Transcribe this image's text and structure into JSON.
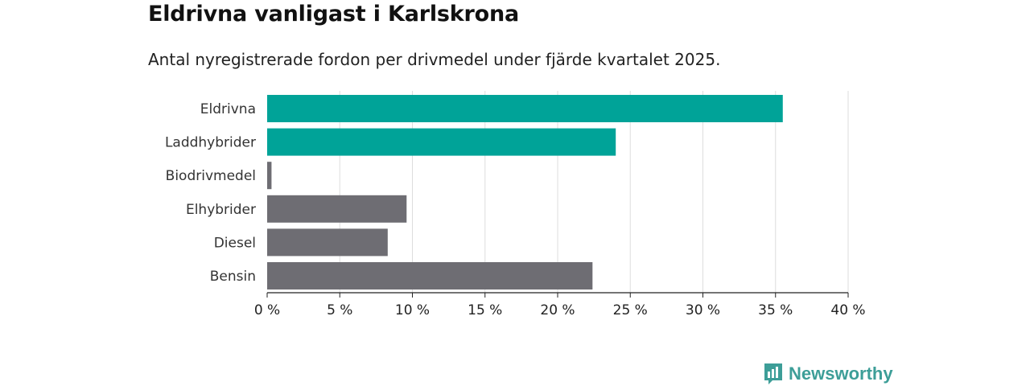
{
  "chart_data": {
    "type": "bar",
    "orientation": "horizontal",
    "title": "Eldrivna vanligast i Karlskrona",
    "subtitle": "Antal nyregistrerade fordon per drivmedel under fjärde kvartalet 2025.",
    "categories": [
      "Eldrivna",
      "Laddhybrider",
      "Biodrivmedel",
      "Elhybrider",
      "Diesel",
      "Bensin"
    ],
    "values": [
      35.5,
      24.0,
      0.3,
      9.6,
      8.3,
      22.4
    ],
    "colors": [
      "#00a398",
      "#00a398",
      "#6e6d73",
      "#6e6d73",
      "#6e6d73",
      "#6e6d73"
    ],
    "xlim": [
      0,
      40
    ],
    "xticks": [
      0,
      5,
      10,
      15,
      20,
      25,
      30,
      35,
      40
    ],
    "xtick_labels": [
      "0 %",
      "5 %",
      "10 %",
      "15 %",
      "20 %",
      "25 %",
      "30 %",
      "35 %",
      "40 %"
    ],
    "xlabel": "",
    "ylabel": "",
    "grid": "vertical"
  },
  "branding": {
    "logo_text": "Newsworthy",
    "logo_icon": "bar-chart-speech-bubble-icon",
    "accent_color": "#3d9e98"
  }
}
